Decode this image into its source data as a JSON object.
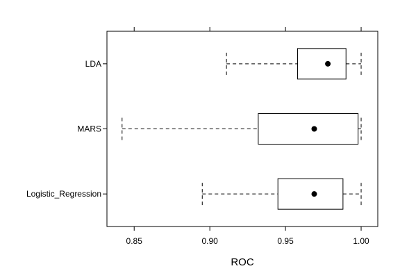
{
  "chart_data": {
    "type": "boxplot",
    "orientation": "horizontal",
    "xlabel": "ROC",
    "ylabel": "",
    "title": "",
    "xlim": [
      0.832,
      1.011
    ],
    "xticks": [
      0.85,
      0.9,
      0.95,
      1.0
    ],
    "xtick_labels": [
      "0.85",
      "0.90",
      "0.95",
      "1.00"
    ],
    "top_ticks": true,
    "grid": false,
    "legend": "none",
    "categories": [
      "LDA",
      "MARS",
      "Logistic_Regression"
    ],
    "boxes": [
      {
        "name": "LDA",
        "whisker_low": 0.911,
        "q1": 0.958,
        "median": 0.978,
        "q3": 0.99,
        "whisker_high": 1.0
      },
      {
        "name": "MARS",
        "whisker_low": 0.842,
        "q1": 0.932,
        "median": 0.969,
        "q3": 0.998,
        "whisker_high": 1.0
      },
      {
        "name": "Logistic_Regression",
        "whisker_low": 0.895,
        "q1": 0.945,
        "median": 0.969,
        "q3": 0.988,
        "whisker_high": 1.0
      }
    ]
  }
}
